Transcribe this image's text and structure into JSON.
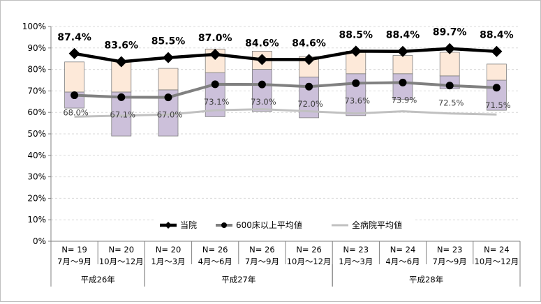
{
  "chart_data": {
    "type": "line",
    "title": "",
    "ylim": [
      0,
      100
    ],
    "y_ticks": [
      "0%",
      "10%",
      "20%",
      "30%",
      "40%",
      "50%",
      "60%",
      "70%",
      "80%",
      "90%",
      "100%"
    ],
    "categories": [
      {
        "n": "N= 19",
        "period": "7月～9月"
      },
      {
        "n": "N= 20",
        "period": "10月～12月"
      },
      {
        "n": "N= 20",
        "period": "1月～3月"
      },
      {
        "n": "N= 26",
        "period": "4月～6月"
      },
      {
        "n": "N= 26",
        "period": "7月～9月"
      },
      {
        "n": "N= 26",
        "period": "10月～12月"
      },
      {
        "n": "N= 23",
        "period": "1月～3月"
      },
      {
        "n": "N= 24",
        "period": "4月～6月"
      },
      {
        "n": "N= 23",
        "period": "7月～9月"
      },
      {
        "n": "N= 24",
        "period": "10月～12月"
      }
    ],
    "year_groups": [
      {
        "label": "平成26年",
        "start": 0,
        "count": 2
      },
      {
        "label": "平成27年",
        "start": 2,
        "count": 4
      },
      {
        "label": "平成28年",
        "start": 6,
        "count": 4
      }
    ],
    "series": [
      {
        "name": "当院",
        "values": [
          87.4,
          83.6,
          85.5,
          87.0,
          84.6,
          84.6,
          88.5,
          88.4,
          89.7,
          88.4
        ],
        "labels": [
          "87.4%",
          "83.6%",
          "85.5%",
          "87.0%",
          "84.6%",
          "84.6%",
          "88.5%",
          "88.4%",
          "89.7%",
          "88.4%"
        ],
        "color": "#000000"
      },
      {
        "name": "600床以上平均値",
        "values": [
          68.0,
          67.1,
          67.0,
          73.1,
          73.0,
          72.0,
          73.6,
          73.9,
          72.5,
          71.5
        ],
        "labels": [
          "68.0%",
          "67.1%",
          "67.0%",
          "73.1%",
          "73.0%",
          "72.0%",
          "73.6%",
          "73.9%",
          "72.5%",
          "71.5%"
        ],
        "color": "#808080"
      },
      {
        "name": "全病院平均値",
        "values": [
          58.0,
          58.5,
          59.0,
          61.0,
          61.5,
          60.5,
          59.5,
          60.5,
          59.5,
          59.0
        ],
        "color": "#c0c0c0"
      }
    ],
    "boxes": [
      {
        "min": 62,
        "q1": 69.5,
        "q3": 83.5
      },
      {
        "min": 49,
        "q1": 69.5,
        "q3": 84
      },
      {
        "min": 49,
        "q1": 70.5,
        "q3": 80.5
      },
      {
        "min": 58,
        "q1": 78.5,
        "q3": 89.5
      },
      {
        "min": 60.5,
        "q1": 80,
        "q3": 88.5
      },
      {
        "min": 57.5,
        "q1": 76.5,
        "q3": 86
      },
      {
        "min": 58.5,
        "q1": 78,
        "q3": 88.5
      },
      {
        "min": 66,
        "q1": 78,
        "q3": 86.5
      },
      {
        "min": 71,
        "q1": 77,
        "q3": 88
      },
      {
        "min": 61,
        "q1": 75,
        "q3": 82.5
      }
    ],
    "legend_position": "bottom-center",
    "colors": {
      "box_upper": "#fde9d9",
      "box_lower": "#ccc0da",
      "box_border": "#7f7f7f"
    }
  }
}
